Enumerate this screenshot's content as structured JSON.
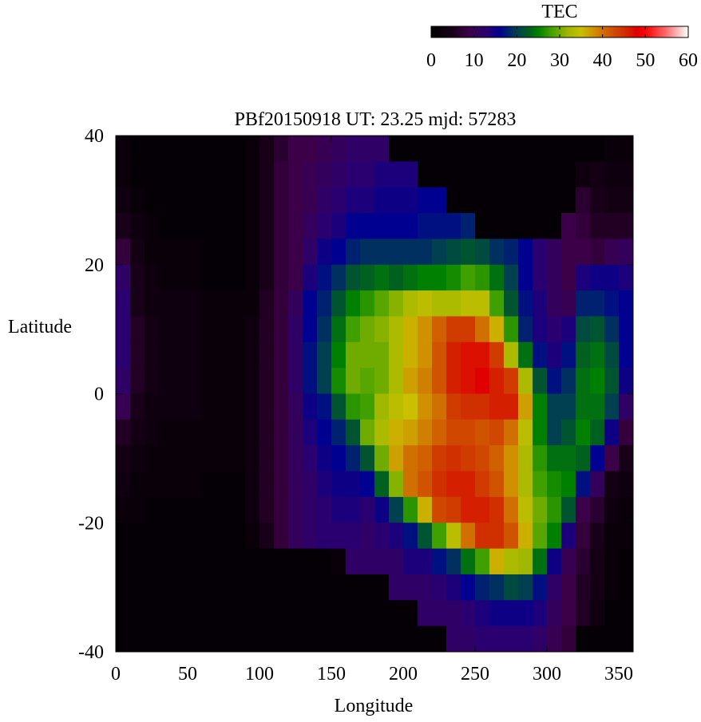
{
  "chart_data": {
    "type": "heatmap",
    "title": "PBf20150918  UT: 23.25  mjd: 57283",
    "xlabel": "Longitude",
    "ylabel": "Latitude",
    "xlim": [
      0,
      360
    ],
    "ylim": [
      -40,
      40
    ],
    "x_ticks": [
      "0",
      "50",
      "100",
      "150",
      "200",
      "250",
      "300",
      "350"
    ],
    "y_ticks": [
      "40",
      "20",
      "0",
      "-20",
      "-40"
    ],
    "colorbar": {
      "label": "TEC",
      "range": [
        0,
        60
      ],
      "ticks": [
        "0",
        "10",
        "20",
        "30",
        "40",
        "50",
        "60"
      ],
      "placement": "top-right"
    },
    "colormap": [
      [
        0,
        "#000000"
      ],
      [
        5,
        "#180018"
      ],
      [
        9,
        "#3c0048"
      ],
      [
        13,
        "#2a0070"
      ],
      [
        16,
        "#000090"
      ],
      [
        20,
        "#004050"
      ],
      [
        23,
        "#006020"
      ],
      [
        25,
        "#008000"
      ],
      [
        28,
        "#40a000"
      ],
      [
        32,
        "#a0b800"
      ],
      [
        35,
        "#c8c000"
      ],
      [
        38,
        "#d09000"
      ],
      [
        41,
        "#d06000"
      ],
      [
        45,
        "#d03000"
      ],
      [
        48,
        "#e00000"
      ],
      [
        50,
        "#ff0000"
      ],
      [
        55,
        "#ff7070"
      ],
      [
        60,
        "#ffffff"
      ]
    ],
    "lon_bin_start": [
      0,
      10,
      20,
      30,
      40,
      50,
      60,
      70,
      80,
      90,
      100,
      110,
      120,
      130,
      140,
      150,
      160,
      170,
      180,
      190,
      200,
      210,
      220,
      230,
      240,
      250,
      260,
      270,
      280,
      290,
      300,
      310,
      320,
      330,
      340,
      350
    ],
    "lat_bin_center": [
      38,
      34,
      30,
      26,
      22,
      18,
      14,
      10,
      6,
      2,
      -2,
      -6,
      -10,
      -14,
      -18,
      -22,
      -26,
      -30,
      -34,
      -38
    ],
    "values_by_lon": [
      [
        2,
        2,
        3,
        5,
        8,
        12,
        13,
        13,
        13,
        12,
        10,
        6,
        4,
        3,
        2,
        1,
        1,
        1,
        1,
        1
      ],
      [
        1,
        1,
        2,
        3,
        4,
        5,
        5,
        6,
        6,
        6,
        5,
        4,
        3,
        2,
        2,
        1,
        1,
        1,
        1,
        1
      ],
      [
        1,
        1,
        1,
        2,
        2,
        3,
        3,
        4,
        4,
        4,
        3,
        3,
        2,
        2,
        1,
        1,
        1,
        1,
        1,
        1
      ],
      [
        1,
        1,
        1,
        1,
        2,
        2,
        3,
        3,
        3,
        3,
        3,
        2,
        2,
        2,
        1,
        1,
        1,
        1,
        1,
        1
      ],
      [
        1,
        1,
        1,
        1,
        2,
        2,
        3,
        3,
        3,
        3,
        3,
        2,
        2,
        2,
        1,
        1,
        1,
        1,
        1,
        1
      ],
      [
        1,
        1,
        1,
        1,
        2,
        2,
        3,
        3,
        3,
        3,
        3,
        2,
        2,
        2,
        1,
        1,
        1,
        1,
        1,
        1
      ],
      [
        1,
        1,
        1,
        1,
        1,
        1,
        2,
        2,
        2,
        2,
        2,
        2,
        2,
        1,
        1,
        1,
        1,
        1,
        1,
        1
      ],
      [
        1,
        1,
        1,
        1,
        1,
        1,
        2,
        2,
        2,
        2,
        2,
        2,
        2,
        1,
        1,
        1,
        1,
        1,
        1,
        1
      ],
      [
        1,
        1,
        1,
        1,
        1,
        1,
        2,
        2,
        2,
        2,
        2,
        2,
        2,
        1,
        1,
        1,
        1,
        1,
        1,
        1
      ],
      [
        2,
        2,
        2,
        2,
        2,
        2,
        2,
        3,
        3,
        3,
        3,
        3,
        3,
        3,
        3,
        2,
        1,
        1,
        1,
        1
      ],
      [
        5,
        5,
        5,
        5,
        5,
        5,
        6,
        6,
        6,
        6,
        6,
        6,
        6,
        6,
        6,
        5,
        1,
        1,
        1,
        1
      ],
      [
        7,
        8,
        8,
        8,
        8,
        8,
        8,
        8,
        8,
        8,
        8,
        8,
        8,
        8,
        8,
        8,
        1,
        1,
        1,
        1
      ],
      [
        9,
        9,
        9,
        9,
        9,
        9,
        11,
        12,
        12,
        12,
        11,
        11,
        11,
        11,
        11,
        11,
        1,
        1,
        1,
        1
      ],
      [
        9,
        10,
        10,
        11,
        12,
        14,
        16,
        16,
        17,
        17,
        15,
        14,
        13,
        12,
        12,
        12,
        1,
        1,
        1,
        1
      ],
      [
        10,
        11,
        12,
        13,
        15,
        17,
        18,
        19,
        20,
        20,
        17,
        16,
        15,
        14,
        13,
        13,
        1,
        1,
        1,
        1
      ],
      [
        11,
        12,
        13,
        14,
        16,
        19,
        22,
        24,
        25,
        26,
        22,
        18,
        16,
        15,
        14,
        13,
        2,
        1,
        1,
        1
      ],
      [
        12,
        13,
        14,
        16,
        18,
        22,
        25,
        28,
        30,
        30,
        27,
        22,
        18,
        15,
        14,
        13,
        12,
        1,
        1,
        1
      ],
      [
        12,
        13,
        14,
        16,
        19,
        23,
        27,
        30,
        30,
        29,
        28,
        30,
        22,
        16,
        13,
        12,
        12,
        1,
        1,
        1
      ],
      [
        12,
        14,
        15,
        16,
        19,
        24,
        29,
        31,
        30,
        30,
        32,
        33,
        30,
        23,
        15,
        13,
        12,
        1,
        1,
        1
      ],
      [
        1,
        14,
        15,
        16,
        19,
        23,
        31,
        33,
        33,
        33,
        34,
        36,
        37,
        31,
        20,
        14,
        12,
        12,
        1,
        1
      ],
      [
        1,
        14,
        15,
        16,
        19,
        24,
        33,
        36,
        36,
        37,
        35,
        37,
        40,
        40,
        27,
        17,
        14,
        12,
        1,
        1
      ],
      [
        1,
        1,
        16,
        17,
        19,
        25,
        34,
        38,
        38,
        39,
        38,
        39,
        41,
        42,
        36,
        22,
        14,
        12,
        12,
        1
      ],
      [
        1,
        1,
        16,
        17,
        20,
        25,
        33,
        41,
        42,
        42,
        40,
        41,
        44,
        45,
        43,
        28,
        17,
        13,
        12,
        1
      ],
      [
        1,
        1,
        1,
        17,
        21,
        26,
        33,
        44,
        46,
        46,
        44,
        43,
        45,
        46,
        44,
        34,
        19,
        14,
        12,
        12
      ],
      [
        1,
        1,
        1,
        18,
        22,
        28,
        34,
        44,
        47,
        47,
        45,
        43,
        44,
        46,
        46,
        40,
        24,
        16,
        13,
        12
      ],
      [
        1,
        1,
        1,
        1,
        21,
        27,
        34,
        40,
        47,
        48,
        45,
        42,
        43,
        44,
        46,
        45,
        28,
        18,
        14,
        13
      ],
      [
        1,
        1,
        1,
        1,
        19,
        24,
        28,
        36,
        44,
        46,
        46,
        43,
        41,
        42,
        45,
        45,
        36,
        19,
        15,
        13
      ],
      [
        1,
        1,
        1,
        1,
        18,
        20,
        22,
        27,
        33,
        44,
        46,
        40,
        38,
        38,
        40,
        42,
        33,
        21,
        15,
        13
      ],
      [
        1,
        1,
        1,
        1,
        16,
        16,
        17,
        18,
        24,
        33,
        37,
        34,
        33,
        33,
        34,
        36,
        32,
        20,
        15,
        13
      ],
      [
        1,
        1,
        1,
        1,
        13,
        13,
        14,
        14,
        17,
        22,
        25,
        25,
        27,
        28,
        30,
        29,
        24,
        17,
        14,
        12
      ],
      [
        1,
        1,
        1,
        1,
        11,
        11,
        11,
        13,
        14,
        17,
        20,
        20,
        24,
        26,
        27,
        25,
        15,
        12,
        11,
        10
      ],
      [
        1,
        1,
        1,
        9,
        9,
        9,
        10,
        14,
        17,
        19,
        20,
        22,
        24,
        25,
        22,
        14,
        10,
        9,
        9,
        8
      ],
      [
        1,
        3,
        7,
        8,
        9,
        14,
        18,
        21,
        23,
        24,
        24,
        25,
        23,
        17,
        9,
        8,
        7,
        6,
        6,
        1
      ],
      [
        1,
        4,
        5,
        6,
        8,
        15,
        18,
        22,
        24,
        25,
        24,
        23,
        16,
        11,
        7,
        5,
        4,
        4,
        3,
        1
      ],
      [
        2,
        3,
        4,
        6,
        10,
        15,
        17,
        19,
        21,
        22,
        20,
        15,
        9,
        4,
        3,
        2,
        2,
        2,
        1,
        1
      ],
      [
        2,
        3,
        4,
        6,
        11,
        14,
        16,
        16,
        16,
        15,
        12,
        8,
        5,
        3,
        2,
        2,
        1,
        1,
        1,
        1
      ]
    ]
  }
}
